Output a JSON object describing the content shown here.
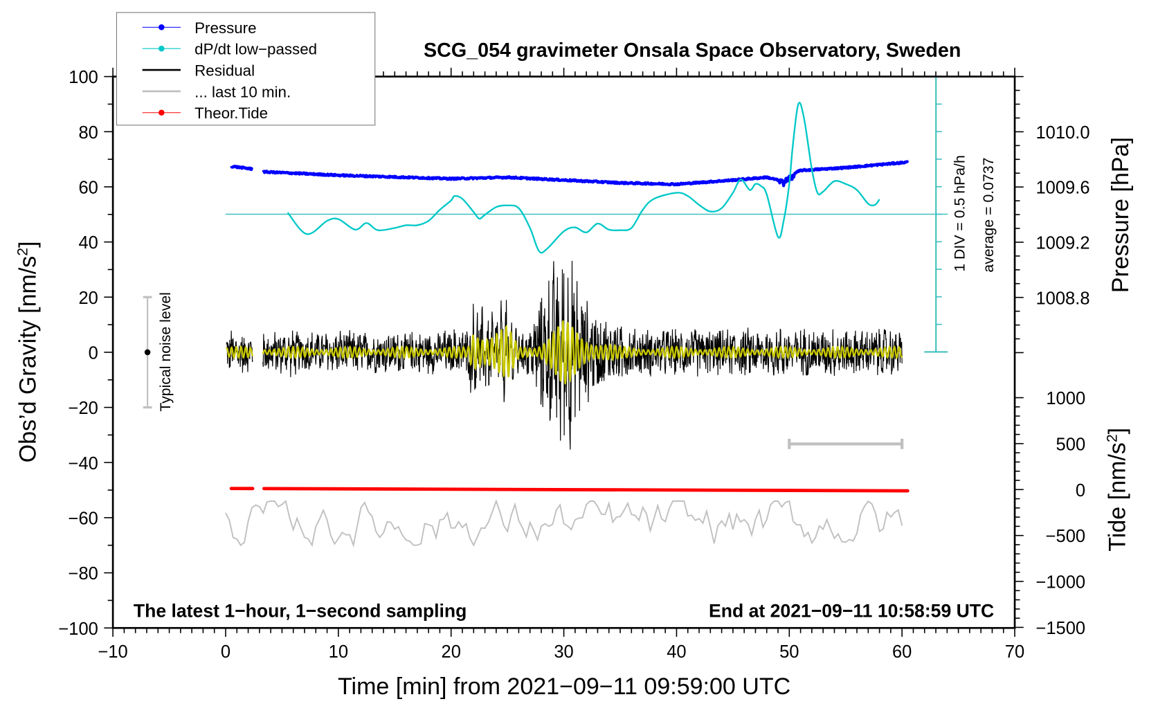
{
  "chart_data": {
    "type": "line",
    "title": "SCG_054 gravimeter Onsala Space Observatory, Sweden",
    "xlabel": "Time [min] from 2021−09−11 09:59:00 UTC",
    "ylabel": {
      "main": "Obs’d Gravity [nm/s",
      "sup": "2",
      "end": "]"
    },
    "y2label_pressure": "Pressure [hPa]",
    "y2label_tide": {
      "main": "Tide [nm/s",
      "sup": "2",
      "end": "]"
    },
    "xlim": [
      -10,
      70
    ],
    "ylim": [
      -100,
      100
    ],
    "pressure_axis_range": [
      1008.4,
      1010.4
    ],
    "tide_axis_range": [
      -1500,
      1500
    ],
    "x_ticks": [
      "−10",
      "0",
      "10",
      "20",
      "30",
      "40",
      "50",
      "60",
      "70"
    ],
    "x_tick_values": [
      -10,
      0,
      10,
      20,
      30,
      40,
      50,
      60,
      70
    ],
    "y_ticks": [
      "100",
      "80",
      "60",
      "40",
      "20",
      "0",
      "−20",
      "−40",
      "−60",
      "−80",
      "−100"
    ],
    "y_tick_values": [
      100,
      80,
      60,
      40,
      20,
      0,
      -20,
      -40,
      -60,
      -80,
      -100
    ],
    "pressure_ticks": [
      "1010.0",
      "1009.6",
      "1009.2",
      "1008.8"
    ],
    "pressure_tick_values": [
      1010.0,
      1009.6,
      1009.2,
      1008.8
    ],
    "tide_ticks": [
      "1000",
      "500",
      "0",
      "−500",
      "−1000",
      "−1500"
    ],
    "tide_tick_values": [
      1000,
      500,
      0,
      -500,
      -1000,
      -1500
    ],
    "legend": {
      "position": "top-left",
      "entries": [
        {
          "label": "Pressure",
          "color": "#0000ff",
          "marker": "dot"
        },
        {
          "label": "dP/dt low−passed",
          "color": "#00c8c8",
          "marker": "dot"
        },
        {
          "label": "Residual",
          "color": "#000000",
          "marker": "line"
        },
        {
          "label": "... last 10 min.",
          "color": "#c0c0c0",
          "marker": "line"
        },
        {
          "label": "Theor.Tide",
          "color": "#ff0000",
          "marker": "dot"
        }
      ]
    },
    "annotations": {
      "left_bottom": "The latest 1−hour, 1−second sampling",
      "right_bottom": "End at 2021−09−11 10:58:59 UTC",
      "div_label": "1 DIV = 0.5 hPa/h",
      "average_label": "average = 0.0737",
      "noise_label": "Typical noise level"
    },
    "noise_level_range": [
      -20,
      20
    ],
    "last10_scale_bar_minutes": [
      50,
      60
    ],
    "dpdt_div_hPa_per_h": 0.5,
    "data_gap_minutes": [
      2.4,
      3.3
    ],
    "series": [
      {
        "name": "Pressure",
        "unit": "hPa",
        "color": "#0000ff",
        "t": [
          0.5,
          2.4,
          3.3,
          10,
          20,
          25,
          30,
          35,
          40,
          45,
          48,
          49.5,
          50.5,
          51,
          55,
          60.5
        ],
        "values": [
          1009.75,
          1009.73,
          1009.71,
          1009.685,
          1009.66,
          1009.67,
          1009.65,
          1009.63,
          1009.62,
          1009.65,
          1009.67,
          1009.64,
          1009.7,
          1009.72,
          1009.74,
          1009.78
        ]
      },
      {
        "name": "dP/dt low-passed",
        "unit": "hPa/h",
        "color": "#00c8c8",
        "t": [
          5.5,
          7.2,
          9,
          10,
          11.5,
          12.5,
          13.5,
          15,
          16,
          17,
          18,
          19,
          20,
          20.3,
          21,
          22,
          22.5,
          23,
          24,
          25,
          26,
          27,
          27.8,
          28.5,
          30,
          31,
          32,
          33,
          34,
          35,
          36,
          37,
          38,
          40,
          41,
          42,
          43,
          44,
          45,
          45.7,
          46.5,
          47,
          47.5,
          48,
          49,
          49.5,
          50,
          50.3,
          50.8,
          51.3,
          52,
          52.5,
          53,
          54,
          55,
          56,
          57,
          57.6,
          58
        ],
        "values": [
          0.03,
          -0.36,
          -0.12,
          -0.09,
          -0.28,
          -0.16,
          -0.29,
          -0.25,
          -0.2,
          -0.2,
          -0.12,
          0.08,
          0.25,
          0.33,
          0.28,
          0.04,
          -0.08,
          -0.01,
          0.13,
          0.16,
          0.11,
          -0.25,
          -0.67,
          -0.63,
          -0.31,
          -0.24,
          -0.33,
          -0.17,
          -0.28,
          -0.29,
          -0.25,
          0.08,
          0.28,
          0.39,
          0.33,
          0.17,
          0.05,
          0.11,
          0.39,
          0.63,
          0.44,
          0.55,
          0.51,
          0.36,
          -0.41,
          -0.12,
          0.55,
          1.22,
          2.0,
          1.75,
          0.82,
          0.39,
          0.41,
          0.6,
          0.55,
          0.44,
          0.19,
          0.17,
          0.27
        ]
      },
      {
        "name": "Residual",
        "unit": "nm/s2",
        "color": "#000000",
        "envelope_t": [
          0,
          20,
          21.5,
          22,
          25,
          26,
          27,
          28,
          29.5,
          30.5,
          31.5,
          33,
          35,
          36,
          60
        ],
        "envelope_amplitude": [
          8,
          8,
          11,
          15,
          15,
          9,
          9,
          24,
          33,
          33,
          22,
          14,
          12,
          9,
          9
        ]
      },
      {
        "name": "Residual filtered",
        "unit": "nm/s2",
        "color": "#c8c800",
        "envelope_t": [
          0,
          21.5,
          22,
          25,
          26,
          27.5,
          28.5,
          30,
          31.5,
          33,
          35,
          60
        ],
        "envelope_amplitude": [
          2,
          2,
          11,
          10,
          2,
          3,
          8,
          12,
          8,
          5,
          2,
          2
        ]
      },
      {
        "name": "... last 10 min.",
        "unit": "nm/s2",
        "color": "#c0c0c0",
        "offset": -62,
        "amplitude": 8
      },
      {
        "name": "Theor.Tide",
        "unit": "nm/s2",
        "color": "#ff0000",
        "t": [
          0.5,
          60.5
        ],
        "values": [
          12,
          -14
        ]
      }
    ]
  }
}
